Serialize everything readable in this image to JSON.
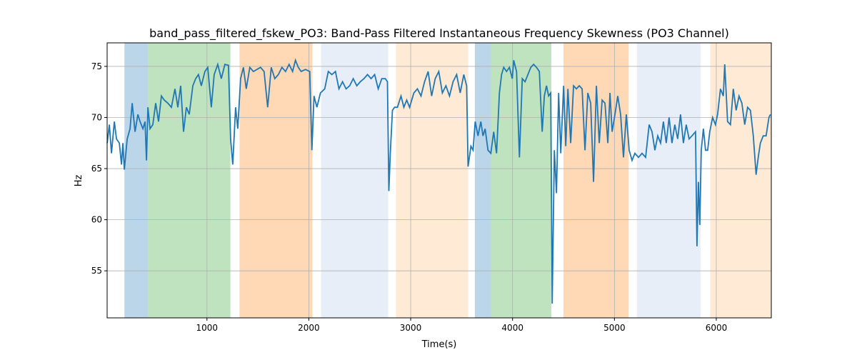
{
  "chart_data": {
    "type": "line",
    "title": "band_pass_filtered_fskew_PO3: Band-Pass Filtered Instantaneous Frequency Skewness (PO3 Channel)",
    "xlabel": "Time(s)",
    "ylabel": "Hz",
    "xlim": [
      20,
      6540
    ],
    "ylim": [
      50.4,
      77.3
    ],
    "xticks": [
      1000,
      2000,
      3000,
      4000,
      5000,
      6000
    ],
    "yticks": [
      55,
      60,
      65,
      70,
      75
    ],
    "grid": true,
    "line_color": "#1f77b4",
    "spans": [
      {
        "start": 190,
        "end": 420,
        "color": "#1f77b4",
        "alpha": 0.3
      },
      {
        "start": 420,
        "end": 1230,
        "color": "#2ca02c",
        "alpha": 0.3
      },
      {
        "start": 1320,
        "end": 2035,
        "color": "#ff7f0e",
        "alpha": 0.3
      },
      {
        "start": 2120,
        "end": 2780,
        "color": "#aec7e8",
        "alpha": 0.3
      },
      {
        "start": 2855,
        "end": 3565,
        "color": "#ffbb78",
        "alpha": 0.3
      },
      {
        "start": 3630,
        "end": 3790,
        "color": "#1f77b4",
        "alpha": 0.3
      },
      {
        "start": 3790,
        "end": 4380,
        "color": "#2ca02c",
        "alpha": 0.3
      },
      {
        "start": 4500,
        "end": 5140,
        "color": "#ff7f0e",
        "alpha": 0.3
      },
      {
        "start": 5220,
        "end": 5845,
        "color": "#aec7e8",
        "alpha": 0.3
      },
      {
        "start": 5940,
        "end": 6540,
        "color": "#ffbb78",
        "alpha": 0.3
      }
    ],
    "x": [
      21,
      42,
      63,
      91,
      112,
      140,
      161,
      175,
      189,
      217,
      245,
      266,
      294,
      322,
      343,
      371,
      392,
      406,
      420,
      441,
      469,
      497,
      525,
      553,
      581,
      616,
      651,
      686,
      714,
      742,
      770,
      798,
      826,
      861,
      889,
      917,
      945,
      980,
      1008,
      1043,
      1071,
      1106,
      1141,
      1176,
      1211,
      1232,
      1253,
      1281,
      1302,
      1330,
      1358,
      1386,
      1421,
      1456,
      1491,
      1526,
      1561,
      1596,
      1631,
      1666,
      1701,
      1736,
      1771,
      1806,
      1841,
      1869,
      1897,
      1925,
      1967,
      2009,
      2030,
      2051,
      2079,
      2114,
      2156,
      2191,
      2226,
      2261,
      2296,
      2331,
      2366,
      2401,
      2436,
      2471,
      2506,
      2541,
      2576,
      2611,
      2646,
      2681,
      2716,
      2751,
      2772,
      2786,
      2800,
      2821,
      2842,
      2870,
      2905,
      2933,
      2961,
      2989,
      3031,
      3066,
      3101,
      3136,
      3171,
      3206,
      3241,
      3276,
      3311,
      3346,
      3381,
      3416,
      3451,
      3486,
      3521,
      3549,
      3563,
      3591,
      3612,
      3633,
      3661,
      3689,
      3710,
      3731,
      3759,
      3787,
      3815,
      3843,
      3871,
      3892,
      3913,
      3941,
      3969,
      3997,
      4011,
      4039,
      4067,
      4095,
      4123,
      4151,
      4179,
      4207,
      4235,
      4263,
      4291,
      4312,
      4333,
      4354,
      4375,
      4389,
      4410,
      4431,
      4452,
      4473,
      4501,
      4522,
      4543,
      4571,
      4599,
      4627,
      4655,
      4683,
      4711,
      4739,
      4767,
      4795,
      4823,
      4851,
      4879,
      4907,
      4935,
      4956,
      4977,
      5005,
      5033,
      5061,
      5089,
      5117,
      5145,
      5173,
      5201,
      5236,
      5271,
      5306,
      5341,
      5369,
      5397,
      5425,
      5453,
      5481,
      5509,
      5537,
      5565,
      5593,
      5621,
      5649,
      5677,
      5705,
      5733,
      5761,
      5796,
      5810,
      5824,
      5838,
      5852,
      5873,
      5894,
      5915,
      5936,
      5964,
      5992,
      6013,
      6041,
      6069,
      6083,
      6111,
      6139,
      6167,
      6195,
      6223,
      6251,
      6279,
      6307,
      6335,
      6363,
      6391,
      6412,
      6433,
      6461,
      6489,
      6517,
      6531
    ],
    "y": [
      67.5,
      69.3,
      66.5,
      69.6,
      67.9,
      67.5,
      65.4,
      67.5,
      64.9,
      67.9,
      68.9,
      71.4,
      68.6,
      70.3,
      69.6,
      68.9,
      69.6,
      65.8,
      71.0,
      68.9,
      69.3,
      71.4,
      69.6,
      72.1,
      71.7,
      71.4,
      71.0,
      72.8,
      71.0,
      73.1,
      68.6,
      71.0,
      70.3,
      73.1,
      73.8,
      74.2,
      73.1,
      74.5,
      74.9,
      71.0,
      74.2,
      75.2,
      73.8,
      75.2,
      75.1,
      67.9,
      65.4,
      71.0,
      68.9,
      73.8,
      74.9,
      72.8,
      74.9,
      74.5,
      74.7,
      74.9,
      74.5,
      71.0,
      74.9,
      73.8,
      74.2,
      74.9,
      74.5,
      75.2,
      74.5,
      75.6,
      74.9,
      74.5,
      74.7,
      74.5,
      66.8,
      72.1,
      71.0,
      72.4,
      72.8,
      74.5,
      74.2,
      74.5,
      72.8,
      73.5,
      72.8,
      73.1,
      73.8,
      73.1,
      73.5,
      73.8,
      74.2,
      73.8,
      74.2,
      72.8,
      73.8,
      73.8,
      73.5,
      62.8,
      66.5,
      70.7,
      71.0,
      71.0,
      72.1,
      71.0,
      71.7,
      71.0,
      72.4,
      72.8,
      72.1,
      73.5,
      74.5,
      72.1,
      73.8,
      74.5,
      72.4,
      73.1,
      72.1,
      73.5,
      74.2,
      72.4,
      74.2,
      73.1,
      65.2,
      67.2,
      66.8,
      69.6,
      68.2,
      69.6,
      68.2,
      68.9,
      66.8,
      66.5,
      68.6,
      66.5,
      72.4,
      74.2,
      74.9,
      74.5,
      74.9,
      73.8,
      75.6,
      74.5,
      66.1,
      73.8,
      73.5,
      74.2,
      74.9,
      75.2,
      74.9,
      74.5,
      68.6,
      72.1,
      73.1,
      72.1,
      72.4,
      51.8,
      66.8,
      62.6,
      72.4,
      66.5,
      73.1,
      67.2,
      72.8,
      67.5,
      73.1,
      72.8,
      73.1,
      72.8,
      66.8,
      72.4,
      71.4,
      63.7,
      73.1,
      67.5,
      71.7,
      71.4,
      67.5,
      72.4,
      68.6,
      70.3,
      72.1,
      70.3,
      66.1,
      70.3,
      66.8,
      65.8,
      66.5,
      66.1,
      66.5,
      66.1,
      69.3,
      68.6,
      66.8,
      68.2,
      67.5,
      69.6,
      67.5,
      70.0,
      67.5,
      69.3,
      67.9,
      70.3,
      67.5,
      69.3,
      67.9,
      68.2,
      68.6,
      57.4,
      63.7,
      59.5,
      66.8,
      68.9,
      66.8,
      66.8,
      68.6,
      70.0,
      69.3,
      70.3,
      72.8,
      72.1,
      75.2,
      69.6,
      69.3,
      72.8,
      70.7,
      72.1,
      71.4,
      69.3,
      71.0,
      70.7,
      68.2,
      64.4,
      66.1,
      67.5,
      68.2,
      68.2,
      70.0,
      70.3
    ]
  }
}
